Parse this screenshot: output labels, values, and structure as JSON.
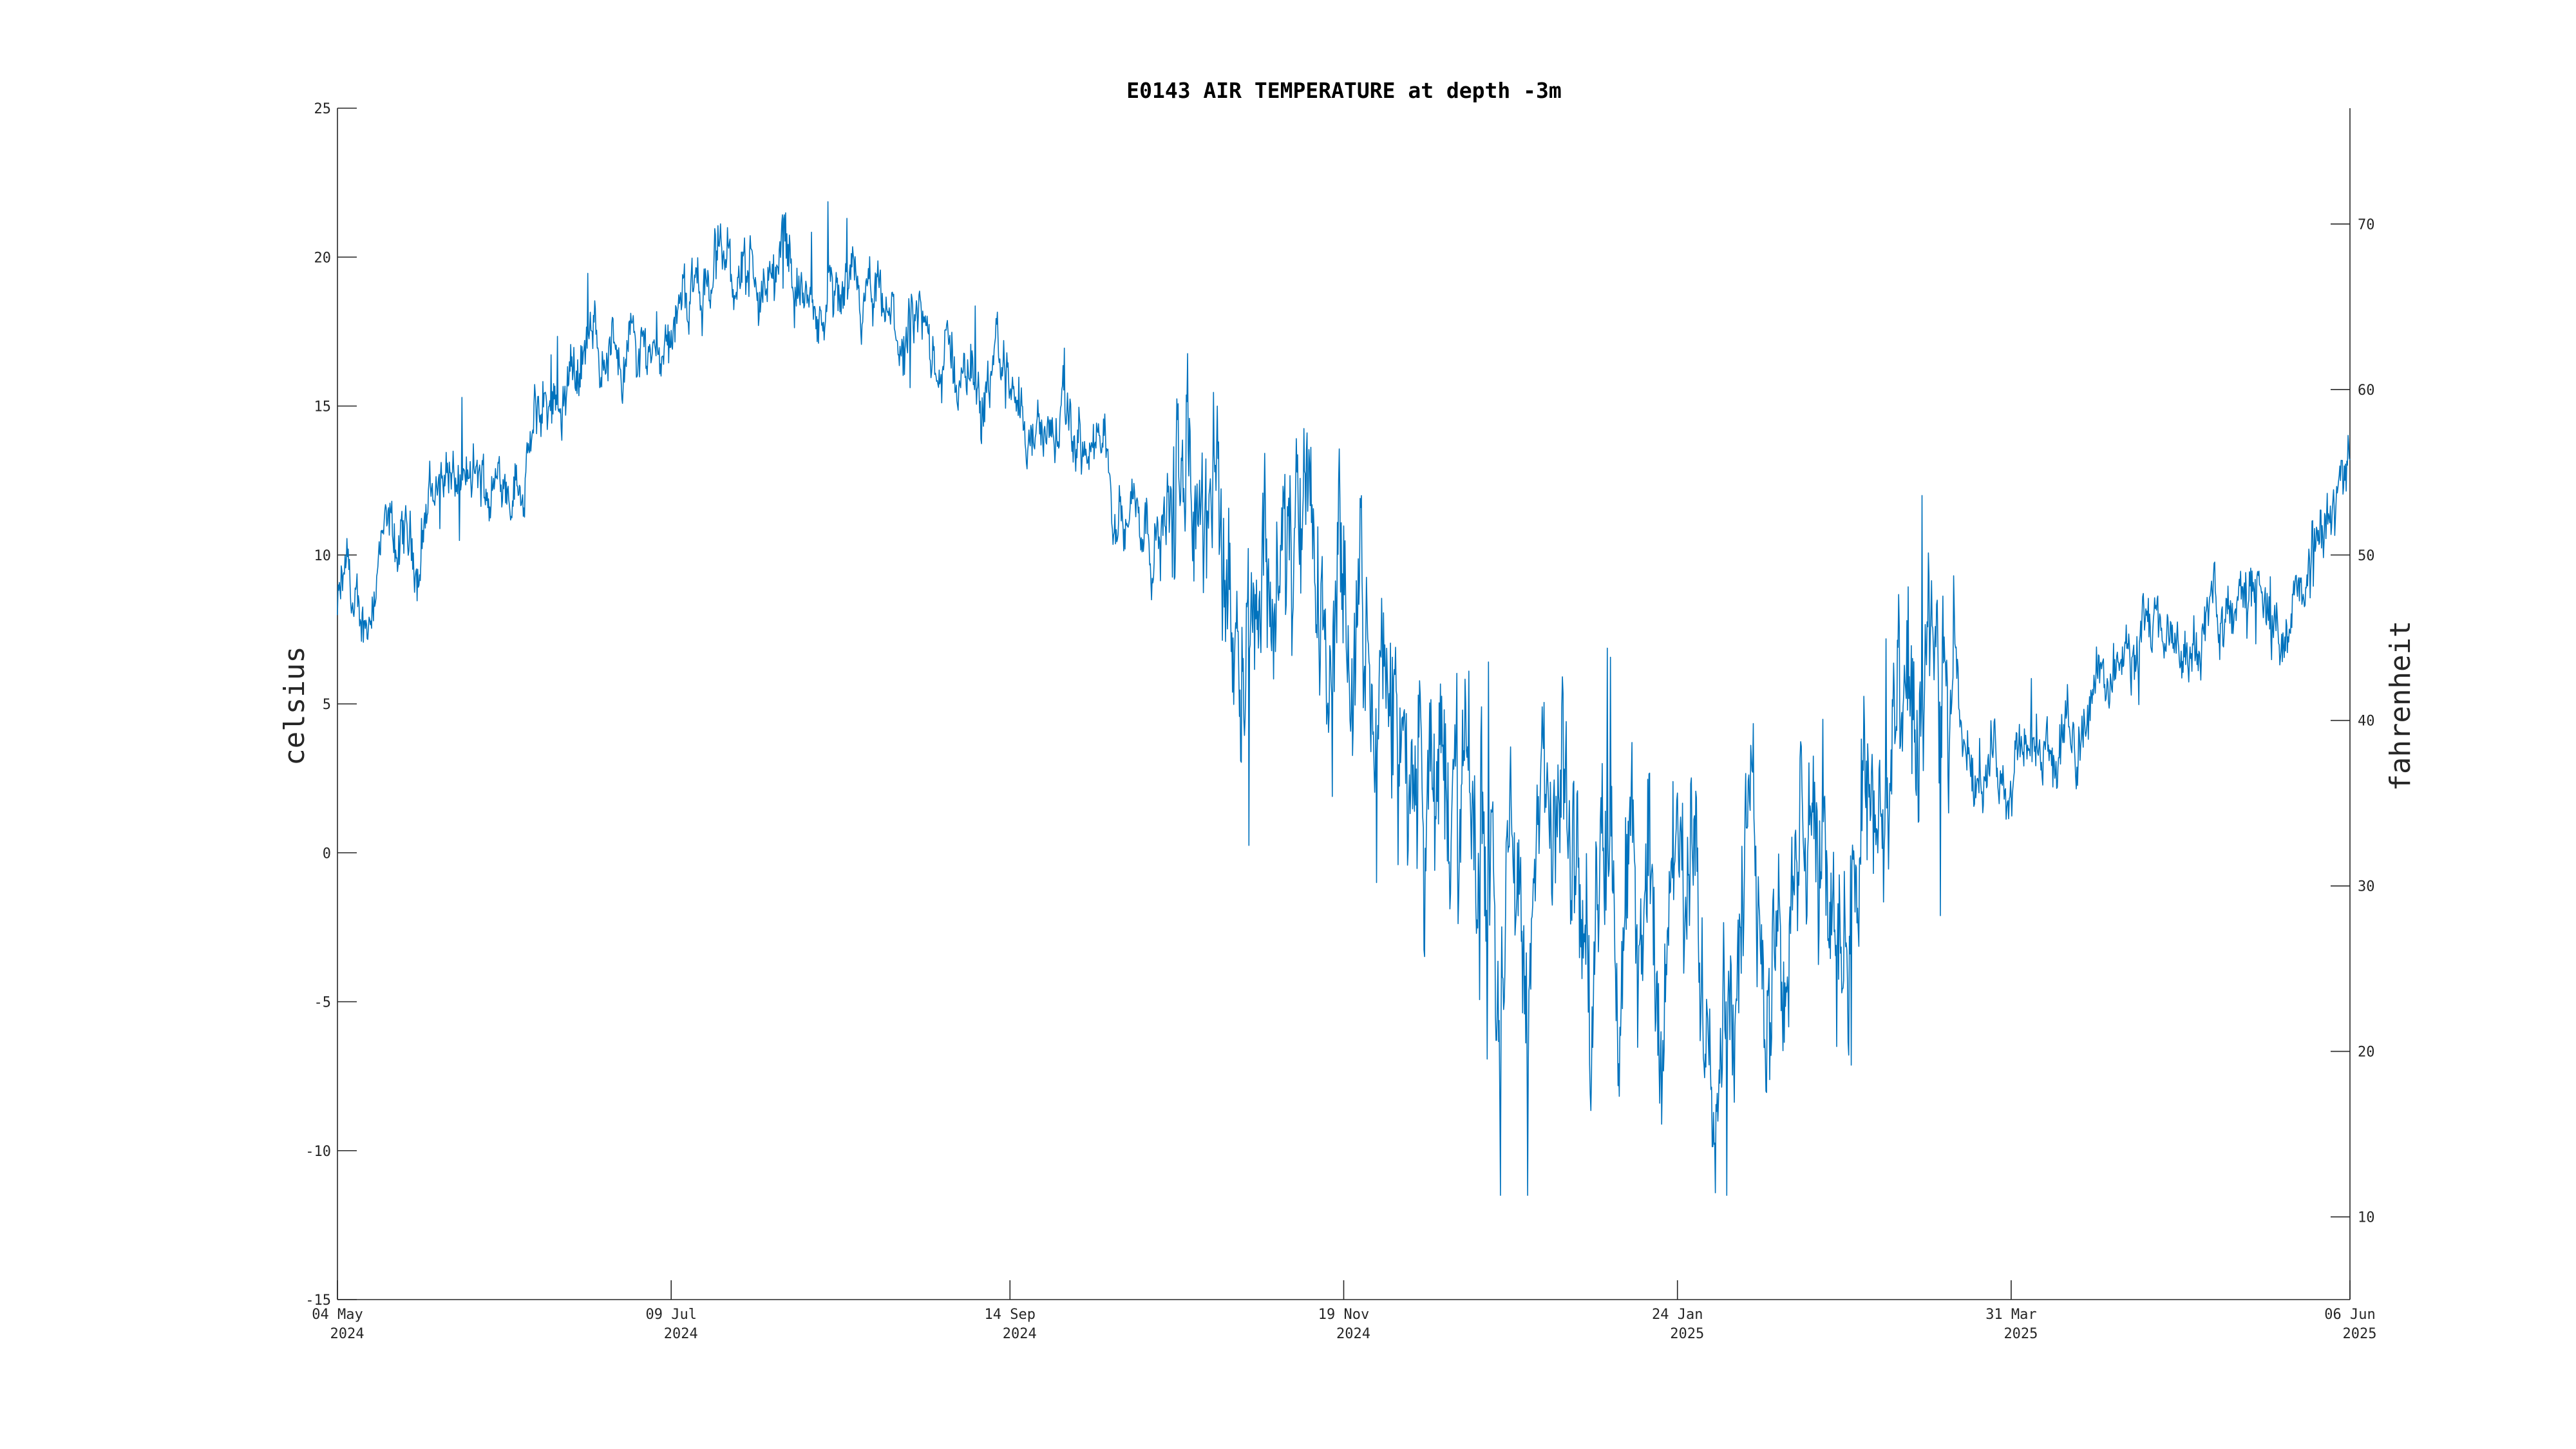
{
  "chart_data": {
    "type": "line",
    "title": "E0143 AIR TEMPERATURE at depth -3m",
    "ylabel": "celsius",
    "ylabel_right": "fahrenheit",
    "xlabel": "",
    "x_range": [
      "2024-05-04",
      "2025-06-06"
    ],
    "ylim": [
      -15,
      25
    ],
    "ylim_right": [
      5,
      77
    ],
    "y_ticks": [
      -15,
      -10,
      -5,
      0,
      5,
      10,
      15,
      20,
      25
    ],
    "y_ticks_right": [
      10,
      20,
      30,
      40,
      50,
      60,
      70
    ],
    "x_ticks": [
      {
        "date": "2024-05-04",
        "line1": "04 May",
        "line2": "2024"
      },
      {
        "date": "2024-07-09",
        "line1": "09 Jul",
        "line2": "2024"
      },
      {
        "date": "2024-09-14",
        "line1": "14 Sep",
        "line2": "2024"
      },
      {
        "date": "2024-11-19",
        "line1": "19 Nov",
        "line2": "2024"
      },
      {
        "date": "2025-01-24",
        "line1": "24 Jan",
        "line2": "2025"
      },
      {
        "date": "2025-03-31",
        "line1": "31 Mar",
        "line2": "2025"
      },
      {
        "date": "2025-06-06",
        "line1": "06 Jun",
        "line2": "2025"
      }
    ],
    "grid": false,
    "series": [
      {
        "color": "#0072bd",
        "points": [
          [
            "2024-05-04",
            8
          ],
          [
            "2024-05-06",
            9
          ],
          [
            "2024-05-08",
            7
          ],
          [
            "2024-05-10",
            8
          ],
          [
            "2024-05-12",
            10
          ],
          [
            "2024-05-15",
            10
          ],
          [
            "2024-05-18",
            10
          ],
          [
            "2024-05-20",
            10
          ],
          [
            "2024-05-22",
            12
          ],
          [
            "2024-05-25",
            13
          ],
          [
            "2024-05-29",
            12
          ],
          [
            "2024-06-02",
            12
          ],
          [
            "2024-06-06",
            13
          ],
          [
            "2024-06-10",
            13
          ],
          [
            "2024-06-14",
            15
          ],
          [
            "2024-06-18",
            16
          ],
          [
            "2024-06-22",
            17
          ],
          [
            "2024-06-26",
            17
          ],
          [
            "2024-06-30",
            17
          ],
          [
            "2024-07-04",
            17
          ],
          [
            "2024-07-09",
            18
          ],
          [
            "2024-07-14",
            19
          ],
          [
            "2024-07-20",
            20
          ],
          [
            "2024-07-26",
            19
          ],
          [
            "2024-08-01",
            20
          ],
          [
            "2024-08-06",
            18
          ],
          [
            "2024-08-12",
            18
          ],
          [
            "2024-08-18",
            18
          ],
          [
            "2024-08-24",
            17
          ],
          [
            "2024-08-30",
            17
          ],
          [
            "2024-09-05",
            16
          ],
          [
            "2024-09-11",
            16
          ],
          [
            "2024-09-14",
            16
          ],
          [
            "2024-09-20",
            14
          ],
          [
            "2024-09-26",
            14
          ],
          [
            "2024-10-02",
            13
          ],
          [
            "2024-10-08",
            12
          ],
          [
            "2024-10-14",
            11
          ],
          [
            "2024-10-20",
            12
          ],
          [
            "2024-10-26",
            10
          ],
          [
            "2024-11-01",
            11
          ],
          [
            "2024-11-07",
            10
          ],
          [
            "2024-11-13",
            8
          ],
          [
            "2024-11-19",
            7
          ],
          [
            "2024-11-25",
            5
          ],
          [
            "2024-12-01",
            3
          ],
          [
            "2024-12-07",
            2
          ],
          [
            "2024-12-13",
            1
          ],
          [
            "2024-12-19",
            0
          ],
          [
            "2024-12-25",
            -2
          ],
          [
            "2024-12-31",
            0
          ],
          [
            "2025-01-06",
            -2
          ],
          [
            "2025-01-12",
            -3
          ],
          [
            "2025-01-18",
            -2
          ],
          [
            "2025-01-24",
            -3
          ],
          [
            "2025-01-30",
            -3
          ],
          [
            "2025-02-05",
            -2
          ],
          [
            "2025-02-11",
            -2
          ],
          [
            "2025-02-17",
            -1
          ],
          [
            "2025-02-23",
            -1
          ],
          [
            "2025-03-01",
            2
          ],
          [
            "2025-03-07",
            3
          ],
          [
            "2025-03-13",
            3
          ],
          [
            "2025-03-19",
            3
          ],
          [
            "2025-03-25",
            3
          ],
          [
            "2025-03-31",
            3
          ],
          [
            "2025-04-06",
            3
          ],
          [
            "2025-04-12",
            4
          ],
          [
            "2025-04-18",
            6
          ],
          [
            "2025-04-24",
            7
          ],
          [
            "2025-04-30",
            7
          ],
          [
            "2025-05-06",
            7
          ],
          [
            "2025-05-12",
            8
          ],
          [
            "2025-05-18",
            9
          ],
          [
            "2025-05-24",
            7
          ],
          [
            "2025-05-30",
            10
          ],
          [
            "2025-06-03",
            11
          ],
          [
            "2025-06-06",
            14
          ]
        ]
      }
    ]
  }
}
